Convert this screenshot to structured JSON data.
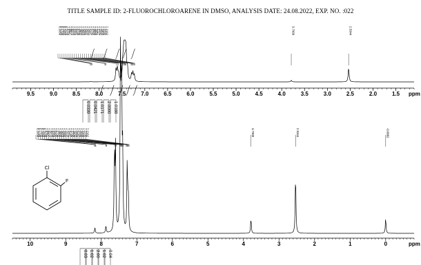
{
  "title": "TITLE SAMPLE ID: 2-FLUOROCHLOROARENE   IN DMSO,  ANALYSIS DATE: 24.08.2022, EXP. NO.  :022",
  "chart_data": [
    {
      "type": "line",
      "name_hint": "expanded 1H spectrum",
      "x_unit": "ppm",
      "xlim": [
        9.9,
        1.1
      ],
      "x_ticks": [
        "9.5",
        "9.0",
        "8.5",
        "8.0",
        "7.5",
        "7.0",
        "6.5",
        "6.0",
        "5.5",
        "5.0",
        "4.5",
        "4.0",
        "3.5",
        "3.0",
        "2.5",
        "2.0",
        "1.5"
      ],
      "peak_labels": [
        {
          "text": "8.2050",
          "x": 8.205
        },
        {
          "text": "8.1798",
          "x": 8.1798
        },
        {
          "text": "8.1665",
          "x": 8.1665
        },
        {
          "text": "8.1520",
          "x": 8.152
        },
        {
          "text": "7.8754",
          "x": 7.8754
        },
        {
          "text": "7.8607",
          "x": 7.8607
        },
        {
          "text": "7.8472",
          "x": 7.8472
        },
        {
          "text": "7.6259",
          "x": 7.6259
        },
        {
          "text": "7.5991",
          "x": 7.5991
        },
        {
          "text": "7.5738",
          "x": 7.5738
        },
        {
          "text": "7.4802",
          "x": 7.4802
        },
        {
          "text": "7.4564",
          "x": 7.4564
        },
        {
          "text": "7.4386",
          "x": 7.4386
        },
        {
          "text": "7.4341",
          "x": 7.4341
        },
        {
          "text": "7.4264",
          "x": 7.4264
        },
        {
          "text": "7.4147",
          "x": 7.4147
        },
        {
          "text": "7.3792",
          "x": 7.3792
        },
        {
          "text": "7.3006",
          "x": 7.3006
        },
        {
          "text": "7.2856",
          "x": 7.2856
        },
        {
          "text": "7.2727",
          "x": 7.2727
        },
        {
          "text": "7.2592",
          "x": 7.2592
        },
        {
          "text": "7.2465",
          "x": 7.2465
        },
        {
          "text": "7.2292",
          "x": 7.2292
        },
        {
          "text": "7.2162",
          "x": 7.2162
        },
        {
          "text": "3.7909",
          "x": 3.7909
        },
        {
          "text": "2.5344",
          "x": 2.5344
        }
      ],
      "peaks": [
        {
          "x": 8.18,
          "h": 0.01
        },
        {
          "x": 7.63,
          "h": 0.3
        },
        {
          "x": 7.6,
          "h": 0.32
        },
        {
          "x": 7.575,
          "h": 0.18
        },
        {
          "x": 7.48,
          "h": 0.45
        },
        {
          "x": 7.455,
          "h": 0.85
        },
        {
          "x": 7.44,
          "h": 0.9
        },
        {
          "x": 7.43,
          "h": 0.7
        },
        {
          "x": 7.41,
          "h": 0.5
        },
        {
          "x": 7.38,
          "h": 0.3
        },
        {
          "x": 7.29,
          "h": 0.18
        },
        {
          "x": 7.26,
          "h": 0.22
        },
        {
          "x": 7.23,
          "h": 0.16
        },
        {
          "x": 3.79,
          "h": 0.04
        },
        {
          "x": 2.534,
          "h": 0.35
        }
      ],
      "integrals": [
        {
          "text": "0.0339",
          "x": 8.15
        },
        {
          "text": "0.0421",
          "x": 7.87
        },
        {
          "text": "1.0171",
          "x": 7.6
        },
        {
          "text": "2.0000",
          "x": 7.45
        },
        {
          "text": "1.0188",
          "x": 7.26
        }
      ]
    },
    {
      "type": "line",
      "name_hint": "full 1H spectrum",
      "x_unit": "ppm",
      "xlim": [
        10.5,
        -0.8
      ],
      "x_ticks": [
        "10",
        "9",
        "8",
        "7",
        "6",
        "5",
        "4",
        "3",
        "2",
        "1",
        "0"
      ],
      "peak_labels": [
        {
          "text": "8.2050",
          "x": 8.205
        },
        {
          "text": "8.1798",
          "x": 8.1798
        },
        {
          "text": "8.1665",
          "x": 8.1665
        },
        {
          "text": "8.1520",
          "x": 8.152
        },
        {
          "text": "7.8754",
          "x": 7.8754
        },
        {
          "text": "7.8607",
          "x": 7.8607
        },
        {
          "text": "7.8472",
          "x": 7.8472
        },
        {
          "text": "7.6259",
          "x": 7.6259
        },
        {
          "text": "7.5991",
          "x": 7.5991
        },
        {
          "text": "7.5738",
          "x": 7.5738
        },
        {
          "text": "7.4802",
          "x": 7.4802
        },
        {
          "text": "7.4564",
          "x": 7.4564
        },
        {
          "text": "7.4386",
          "x": 7.4386
        },
        {
          "text": "7.4341",
          "x": 7.4341
        },
        {
          "text": "7.4264",
          "x": 7.4264
        },
        {
          "text": "7.4147",
          "x": 7.4147
        },
        {
          "text": "7.3792",
          "x": 7.3792
        },
        {
          "text": "7.3006",
          "x": 7.3006
        },
        {
          "text": "7.2856",
          "x": 7.2856
        },
        {
          "text": "7.2727",
          "x": 7.2727
        },
        {
          "text": "7.2592",
          "x": 7.2592
        },
        {
          "text": "7.2465",
          "x": 7.2465
        },
        {
          "text": "7.2292",
          "x": 7.2292
        },
        {
          "text": "7.2162",
          "x": 7.2162
        },
        {
          "text": "3.7909",
          "x": 3.7909
        },
        {
          "text": "2.5344",
          "x": 2.5344
        },
        {
          "text": "-0.0002",
          "x": -0.0002
        }
      ],
      "peaks": [
        {
          "x": 8.18,
          "h": 0.03
        },
        {
          "x": 7.87,
          "h": 0.04
        },
        {
          "x": 7.63,
          "h": 0.42
        },
        {
          "x": 7.6,
          "h": 0.44
        },
        {
          "x": 7.46,
          "h": 1.0
        },
        {
          "x": 7.43,
          "h": 0.85
        },
        {
          "x": 7.4,
          "h": 0.4
        },
        {
          "x": 7.27,
          "h": 0.38
        },
        {
          "x": 7.24,
          "h": 0.2
        },
        {
          "x": 3.79,
          "h": 0.08
        },
        {
          "x": 2.534,
          "h": 0.32
        },
        {
          "x": 0.0,
          "h": 0.08
        }
      ],
      "integrals": [
        {
          "text": "0.03",
          "x": 8.0
        },
        {
          "text": "1.02",
          "x": 7.7
        },
        {
          "text": "2.00",
          "x": 7.45
        },
        {
          "text": "1.02",
          "x": 7.25
        },
        {
          "text": "0.04",
          "x": 7.05
        }
      ]
    }
  ],
  "molecule": {
    "atom_cl": "Cl",
    "atom_f": "F"
  }
}
